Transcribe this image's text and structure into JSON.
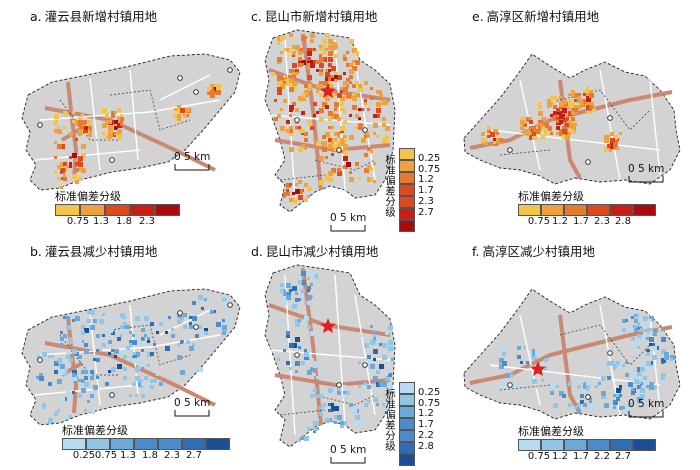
{
  "colors": {
    "land": "#d3d3d3",
    "boundary": "#222222",
    "road_major": "#c98973",
    "road_minor": "#ffffff",
    "increase_scale": [
      "#f2c54a",
      "#eda23f",
      "#e67a2e",
      "#dc4a22",
      "#c81e14",
      "#a80c0c"
    ],
    "decrease_scale": [
      "#b7dbf0",
      "#92c6e6",
      "#6aa9d9",
      "#4b8bc9",
      "#2f6db5",
      "#1c4e95"
    ]
  },
  "panels": [
    {
      "id": "a",
      "letter": "a.",
      "title": "灌云县新增村镇用地",
      "scale_label": "0  5 km",
      "legend_title": "标准偏差分级",
      "legend_ticks": [
        "0.75",
        "1.3",
        "1.8",
        "2.3"
      ]
    },
    {
      "id": "b",
      "letter": "b.",
      "title": "灌云县减少村镇用地",
      "scale_label": "0  5 km",
      "legend_title": "标准偏差分级",
      "legend_ticks": [
        "0.25",
        "0.75",
        "1.3",
        "1.8",
        "2.3",
        "2.7"
      ]
    },
    {
      "id": "c",
      "letter": "c.",
      "title": "昆山市新增村镇用地",
      "scale_label": "0  5 km",
      "legend_title": "标准偏差分级",
      "legend_ticks": [
        "0.25",
        "0.75",
        "1.2",
        "1.7",
        "2.3",
        "2.7"
      ]
    },
    {
      "id": "d",
      "letter": "d.",
      "title": "昆山市减少村镇用地",
      "scale_label": "0  5 km",
      "legend_title": "标准偏差分级",
      "legend_ticks": [
        "0.25",
        "0.75",
        "1.2",
        "1.7",
        "2.2",
        "2.8"
      ]
    },
    {
      "id": "e",
      "letter": "e.",
      "title": "高淳区新增村镇用地",
      "scale_label": "0  5 km",
      "legend_title": "标准偏差分级",
      "legend_ticks": [
        "0.75",
        "1.2",
        "1.7",
        "2.3",
        "2.8"
      ]
    },
    {
      "id": "f",
      "letter": "f.",
      "title": "高淳区减少村镇用地",
      "scale_label": "0  5 km",
      "legend_title": "标准偏差分级",
      "legend_ticks": [
        "0.75",
        "1.2",
        "1.7",
        "2.2",
        "2.7"
      ]
    }
  ]
}
